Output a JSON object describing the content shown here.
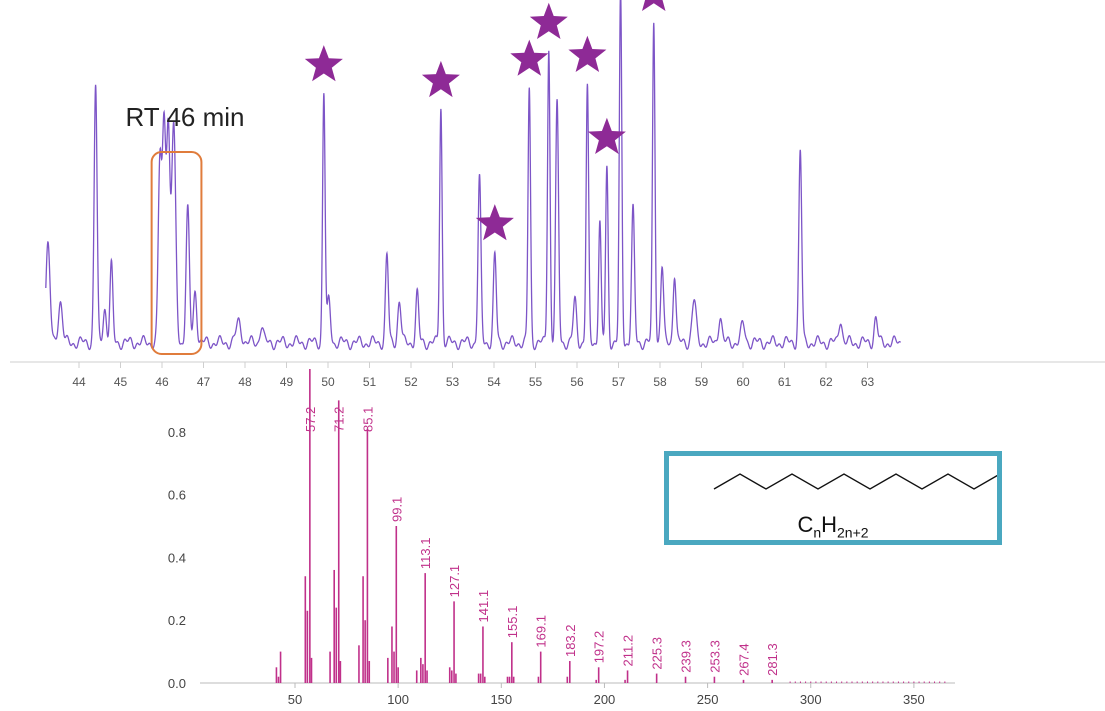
{
  "colors": {
    "trace": "#7d55c7",
    "star": "#8e2a96",
    "highlight_box": "#e07c3c",
    "ms_bars": "#c0308a",
    "structure_border": "#4aa8c0"
  },
  "annotations": {
    "rt_label": "RT 46 min"
  },
  "structure": {
    "formula_c": "C",
    "formula_n1": "n",
    "formula_h": "H",
    "formula_n2": "2n+2",
    "shape": "zigzag-alkane-chain"
  },
  "chart_data": [
    {
      "type": "line",
      "name": "chromatogram",
      "xlim": [
        43.2,
        63.8
      ],
      "x_ticks": [
        "44",
        "45",
        "46",
        "47",
        "48",
        "49",
        "50",
        "51",
        "52",
        "53",
        "54",
        "55",
        "56",
        "57",
        "58",
        "59",
        "60",
        "61",
        "62",
        "63"
      ],
      "baseline": 0.05,
      "peaks": [
        {
          "rt": 43.25,
          "h": 0.28,
          "w": 0.05
        },
        {
          "rt": 43.55,
          "h": 0.12,
          "w": 0.05
        },
        {
          "rt": 44.4,
          "h": 0.74,
          "w": 0.035
        },
        {
          "rt": 44.62,
          "h": 0.1,
          "w": 0.04
        },
        {
          "rt": 44.78,
          "h": 0.22,
          "w": 0.035
        },
        {
          "rt": 45.95,
          "h": 0.52,
          "w": 0.04
        },
        {
          "rt": 46.05,
          "h": 0.62,
          "w": 0.04
        },
        {
          "rt": 46.15,
          "h": 0.6,
          "w": 0.04
        },
        {
          "rt": 46.28,
          "h": 0.62,
          "w": 0.05
        },
        {
          "rt": 46.62,
          "h": 0.38,
          "w": 0.04
        },
        {
          "rt": 46.8,
          "h": 0.15,
          "w": 0.04
        },
        {
          "rt": 47.85,
          "h": 0.06,
          "w": 0.06
        },
        {
          "rt": 48.4,
          "h": 0.05,
          "w": 0.04
        },
        {
          "rt": 49.9,
          "h": 0.72,
          "w": 0.03
        },
        {
          "rt": 50.02,
          "h": 0.12,
          "w": 0.04
        },
        {
          "rt": 51.42,
          "h": 0.25,
          "w": 0.035
        },
        {
          "rt": 51.72,
          "h": 0.12,
          "w": 0.04
        },
        {
          "rt": 52.15,
          "h": 0.14,
          "w": 0.035
        },
        {
          "rt": 52.72,
          "h": 0.68,
          "w": 0.03
        },
        {
          "rt": 53.65,
          "h": 0.47,
          "w": 0.035
        },
        {
          "rt": 54.02,
          "h": 0.25,
          "w": 0.035
        },
        {
          "rt": 54.85,
          "h": 0.73,
          "w": 0.03
        },
        {
          "rt": 55.32,
          "h": 0.85,
          "w": 0.03
        },
        {
          "rt": 55.52,
          "h": 0.68,
          "w": 0.035
        },
        {
          "rt": 55.95,
          "h": 0.12,
          "w": 0.04
        },
        {
          "rt": 56.25,
          "h": 0.73,
          "w": 0.03
        },
        {
          "rt": 56.55,
          "h": 0.35,
          "w": 0.03
        },
        {
          "rt": 56.72,
          "h": 0.5,
          "w": 0.03
        },
        {
          "rt": 57.05,
          "h": 1.0,
          "w": 0.03
        },
        {
          "rt": 57.35,
          "h": 0.38,
          "w": 0.035
        },
        {
          "rt": 57.85,
          "h": 0.92,
          "w": 0.03
        },
        {
          "rt": 58.05,
          "h": 0.22,
          "w": 0.035
        },
        {
          "rt": 58.35,
          "h": 0.2,
          "w": 0.035
        },
        {
          "rt": 58.82,
          "h": 0.12,
          "w": 0.05
        },
        {
          "rt": 59.45,
          "h": 0.08,
          "w": 0.04
        },
        {
          "rt": 60.0,
          "h": 0.05,
          "w": 0.05
        },
        {
          "rt": 61.38,
          "h": 0.55,
          "w": 0.035
        },
        {
          "rt": 62.35,
          "h": 0.07,
          "w": 0.04
        },
        {
          "rt": 63.2,
          "h": 0.07,
          "w": 0.04
        }
      ],
      "star_markers_rt": [
        49.9,
        52.72,
        54.02,
        54.85,
        55.32,
        56.25,
        56.72,
        57.85
      ],
      "highlight_range": [
        45.75,
        46.95
      ]
    },
    {
      "type": "bar",
      "name": "mass-spectrum",
      "xlim": [
        0,
        370
      ],
      "ylim": [
        0,
        1.0
      ],
      "x_ticks": [
        "50",
        "100",
        "150",
        "200",
        "250",
        "300",
        "350"
      ],
      "y_ticks": [
        "0.0",
        "0.2",
        "0.4",
        "0.6",
        "0.8"
      ],
      "y_tick_values": [
        0,
        0.2,
        0.4,
        0.6,
        0.8
      ],
      "ylabel": "",
      "bars": [
        {
          "mz": 41.0,
          "v": 0.05
        },
        {
          "mz": 42.0,
          "v": 0.02
        },
        {
          "mz": 43.0,
          "v": 0.1
        },
        {
          "mz": 55.0,
          "v": 0.34
        },
        {
          "mz": 56.0,
          "v": 0.23
        },
        {
          "mz": 57.2,
          "v": 1.0
        },
        {
          "mz": 58.0,
          "v": 0.08
        },
        {
          "mz": 67.0,
          "v": 0.1
        },
        {
          "mz": 69.0,
          "v": 0.36
        },
        {
          "mz": 70.0,
          "v": 0.24
        },
        {
          "mz": 71.2,
          "v": 0.9
        },
        {
          "mz": 72.0,
          "v": 0.07
        },
        {
          "mz": 81.0,
          "v": 0.12
        },
        {
          "mz": 83.0,
          "v": 0.34
        },
        {
          "mz": 84.0,
          "v": 0.2
        },
        {
          "mz": 85.1,
          "v": 0.81
        },
        {
          "mz": 86.0,
          "v": 0.07
        },
        {
          "mz": 95.0,
          "v": 0.08
        },
        {
          "mz": 97.0,
          "v": 0.18
        },
        {
          "mz": 98.0,
          "v": 0.1
        },
        {
          "mz": 99.1,
          "v": 0.5
        },
        {
          "mz": 100.0,
          "v": 0.05
        },
        {
          "mz": 109.0,
          "v": 0.04
        },
        {
          "mz": 111.0,
          "v": 0.08
        },
        {
          "mz": 112.0,
          "v": 0.06
        },
        {
          "mz": 113.1,
          "v": 0.35
        },
        {
          "mz": 114.0,
          "v": 0.04
        },
        {
          "mz": 125.0,
          "v": 0.05
        },
        {
          "mz": 126.0,
          "v": 0.04
        },
        {
          "mz": 127.1,
          "v": 0.26
        },
        {
          "mz": 128.0,
          "v": 0.03
        },
        {
          "mz": 139.0,
          "v": 0.03
        },
        {
          "mz": 140.0,
          "v": 0.03
        },
        {
          "mz": 141.1,
          "v": 0.18
        },
        {
          "mz": 142.0,
          "v": 0.02
        },
        {
          "mz": 153.0,
          "v": 0.02
        },
        {
          "mz": 154.0,
          "v": 0.02
        },
        {
          "mz": 155.1,
          "v": 0.13
        },
        {
          "mz": 156.0,
          "v": 0.02
        },
        {
          "mz": 168.0,
          "v": 0.02
        },
        {
          "mz": 169.1,
          "v": 0.1
        },
        {
          "mz": 182.0,
          "v": 0.02
        },
        {
          "mz": 183.2,
          "v": 0.07
        },
        {
          "mz": 196.0,
          "v": 0.01
        },
        {
          "mz": 197.2,
          "v": 0.05
        },
        {
          "mz": 210.0,
          "v": 0.01
        },
        {
          "mz": 211.2,
          "v": 0.04
        },
        {
          "mz": 225.3,
          "v": 0.03
        },
        {
          "mz": 239.3,
          "v": 0.02
        },
        {
          "mz": 253.3,
          "v": 0.02
        },
        {
          "mz": 267.4,
          "v": 0.01
        },
        {
          "mz": 281.3,
          "v": 0.01
        }
      ],
      "peak_labels": [
        "57.2",
        "71.2",
        "85.1",
        "99.1",
        "113.1",
        "127.1",
        "141.1",
        "155.1",
        "169.1",
        "183.2",
        "197.2",
        "211.2",
        "225.3",
        "239.3",
        "253.3",
        "267.4",
        "281.3"
      ]
    }
  ]
}
